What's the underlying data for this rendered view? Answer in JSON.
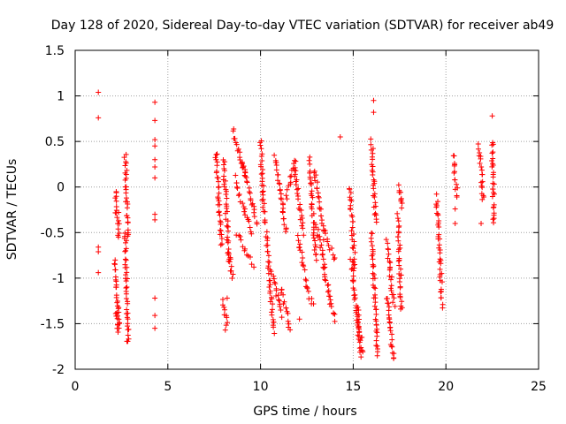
{
  "chart_data": {
    "type": "scatter",
    "title": "Day 128 of 2020, Sidereal Day-to-day VTEC variation (SDTVAR) for receiver ab49",
    "xlabel": "GPS time / hours",
    "ylabel": "SDTVAR / TECUs",
    "xlim": [
      0,
      25
    ],
    "ylim": [
      -2,
      1.5
    ],
    "xticks": [
      0,
      5,
      10,
      15,
      20,
      25
    ],
    "xtick_labels": [
      "0",
      "5",
      "10",
      "15",
      "20",
      "25"
    ],
    "yticks": [
      -2,
      -1.5,
      -1,
      -0.5,
      0,
      0.5,
      1,
      1.5
    ],
    "ytick_labels": [
      "-2",
      "-1.5",
      "-1",
      "-0.5",
      "0",
      "0.5",
      "1",
      "1.5"
    ],
    "grid": true,
    "marker": "+",
    "color": "#ff0000",
    "isolated_points": [
      {
        "x": 1.25,
        "y": 1.04
      },
      {
        "x": 1.25,
        "y": 0.76
      },
      {
        "x": 1.25,
        "y": -0.66
      },
      {
        "x": 1.25,
        "y": -0.71
      },
      {
        "x": 1.25,
        "y": -0.94
      },
      {
        "x": 4.3,
        "y": 0.93
      },
      {
        "x": 4.3,
        "y": 0.73
      },
      {
        "x": 4.3,
        "y": 0.52
      },
      {
        "x": 4.3,
        "y": 0.45
      },
      {
        "x": 4.3,
        "y": 0.3
      },
      {
        "x": 4.3,
        "y": 0.22
      },
      {
        "x": 4.3,
        "y": 0.1
      },
      {
        "x": 4.3,
        "y": -0.3
      },
      {
        "x": 4.3,
        "y": -0.36
      },
      {
        "x": 4.3,
        "y": -1.22
      },
      {
        "x": 4.3,
        "y": -1.41
      },
      {
        "x": 4.3,
        "y": -1.55
      },
      {
        "x": 14.3,
        "y": 0.55
      },
      {
        "x": 16.1,
        "y": 0.95
      },
      {
        "x": 16.1,
        "y": 0.82
      },
      {
        "x": 20.5,
        "y": -0.24
      },
      {
        "x": 20.5,
        "y": -0.4
      },
      {
        "x": 21.9,
        "y": -0.4
      },
      {
        "x": 22.5,
        "y": 0.78
      },
      {
        "x": 8.1,
        "y": -1.57
      },
      {
        "x": 8.2,
        "y": -1.22
      },
      {
        "x": 12.1,
        "y": -1.45
      },
      {
        "x": 13.4,
        "y": -0.58
      },
      {
        "x": 16.95,
        "y": -1.45
      }
    ],
    "segments": [
      {
        "x": [
          2.2,
          2.2
        ],
        "y": [
          -0.05,
          -0.3
        ]
      },
      {
        "x": [
          2.3,
          2.35
        ],
        "y": [
          -0.3,
          -0.55
        ]
      },
      {
        "x": [
          2.1,
          2.4
        ],
        "y": [
          -0.8,
          -1.55
        ]
      },
      {
        "x": [
          2.7,
          2.85
        ],
        "y": [
          0.35,
          -0.55
        ]
      },
      {
        "x": [
          2.7,
          2.85
        ],
        "y": [
          -0.5,
          -1.72
        ]
      },
      {
        "x": [
          2.2,
          2.3
        ],
        "y": [
          -1.35,
          -1.6
        ]
      },
      {
        "x": [
          7.6,
          7.9
        ],
        "y": [
          0.38,
          -0.65
        ]
      },
      {
        "x": [
          8.0,
          8.3
        ],
        "y": [
          0.3,
          -0.8
        ]
      },
      {
        "x": [
          8.3,
          8.5
        ],
        "y": [
          -0.7,
          -1.0
        ]
      },
      {
        "x": [
          8.0,
          8.2
        ],
        "y": [
          -1.25,
          -1.5
        ]
      },
      {
        "x": [
          8.5,
          9.2
        ],
        "y": [
          0.62,
          0.1
        ]
      },
      {
        "x": [
          8.6,
          9.5
        ],
        "y": [
          0.1,
          -0.5
        ]
      },
      {
        "x": [
          8.7,
          9.6
        ],
        "y": [
          -0.5,
          -0.85
        ]
      },
      {
        "x": [
          9.0,
          9.8
        ],
        "y": [
          0.3,
          -0.4
        ]
      },
      {
        "x": [
          10.0,
          10.2
        ],
        "y": [
          0.5,
          -0.4
        ]
      },
      {
        "x": [
          10.3,
          10.7
        ],
        "y": [
          -0.5,
          -1.6
        ]
      },
      {
        "x": [
          10.6,
          11.1
        ],
        "y": [
          -0.9,
          -1.4
        ]
      },
      {
        "x": [
          10.8,
          11.4
        ],
        "y": [
          0.35,
          -0.5
        ]
      },
      {
        "x": [
          11.1,
          11.6
        ],
        "y": [
          -1.1,
          -1.55
        ]
      },
      {
        "x": [
          11.4,
          11.9
        ],
        "y": [
          -0.1,
          0.3
        ]
      },
      {
        "x": [
          11.8,
          12.3
        ],
        "y": [
          0.25,
          -0.5
        ]
      },
      {
        "x": [
          12.0,
          12.4
        ],
        "y": [
          -0.55,
          -0.9
        ]
      },
      {
        "x": [
          12.4,
          12.8
        ],
        "y": [
          -1.0,
          -1.3
        ]
      },
      {
        "x": [
          12.6,
          13.0
        ],
        "y": [
          0.3,
          -0.8
        ]
      },
      {
        "x": [
          12.9,
          13.4
        ],
        "y": [
          0.2,
          -0.5
        ]
      },
      {
        "x": [
          13.0,
          13.5
        ],
        "y": [
          -0.4,
          -0.9
        ]
      },
      {
        "x": [
          13.5,
          14.0
        ],
        "y": [
          -0.5,
          -0.8
        ]
      },
      {
        "x": [
          13.4,
          13.7
        ],
        "y": [
          -0.9,
          -1.2
        ]
      },
      {
        "x": [
          13.7,
          14.0
        ],
        "y": [
          -1.2,
          -1.45
        ]
      },
      {
        "x": [
          14.8,
          15.1
        ],
        "y": [
          0.0,
          -0.9
        ]
      },
      {
        "x": [
          14.9,
          15.4
        ],
        "y": [
          -0.8,
          -1.85
        ]
      },
      {
        "x": [
          15.2,
          15.5
        ],
        "y": [
          -1.3,
          -1.8
        ]
      },
      {
        "x": [
          16.0,
          16.2
        ],
        "y": [
          0.5,
          -0.4
        ]
      },
      {
        "x": [
          16.0,
          16.3
        ],
        "y": [
          -0.5,
          -1.85
        ]
      },
      {
        "x": [
          16.8,
          17.2
        ],
        "y": [
          -0.6,
          -1.3
        ]
      },
      {
        "x": [
          16.8,
          17.2
        ],
        "y": [
          -1.2,
          -1.9
        ]
      },
      {
        "x": [
          17.4,
          17.6
        ],
        "y": [
          -0.3,
          -1.35
        ]
      },
      {
        "x": [
          17.5,
          17.6
        ],
        "y": [
          0.0,
          -0.2
        ]
      },
      {
        "x": [
          19.5,
          19.8
        ],
        "y": [
          -0.1,
          -1.3
        ]
      },
      {
        "x": [
          20.4,
          20.6
        ],
        "y": [
          0.35,
          -0.1
        ]
      },
      {
        "x": [
          21.8,
          22.0
        ],
        "y": [
          0.45,
          -0.15
        ]
      },
      {
        "x": [
          22.5,
          22.6
        ],
        "y": [
          0.5,
          -0.4
        ]
      }
    ]
  }
}
